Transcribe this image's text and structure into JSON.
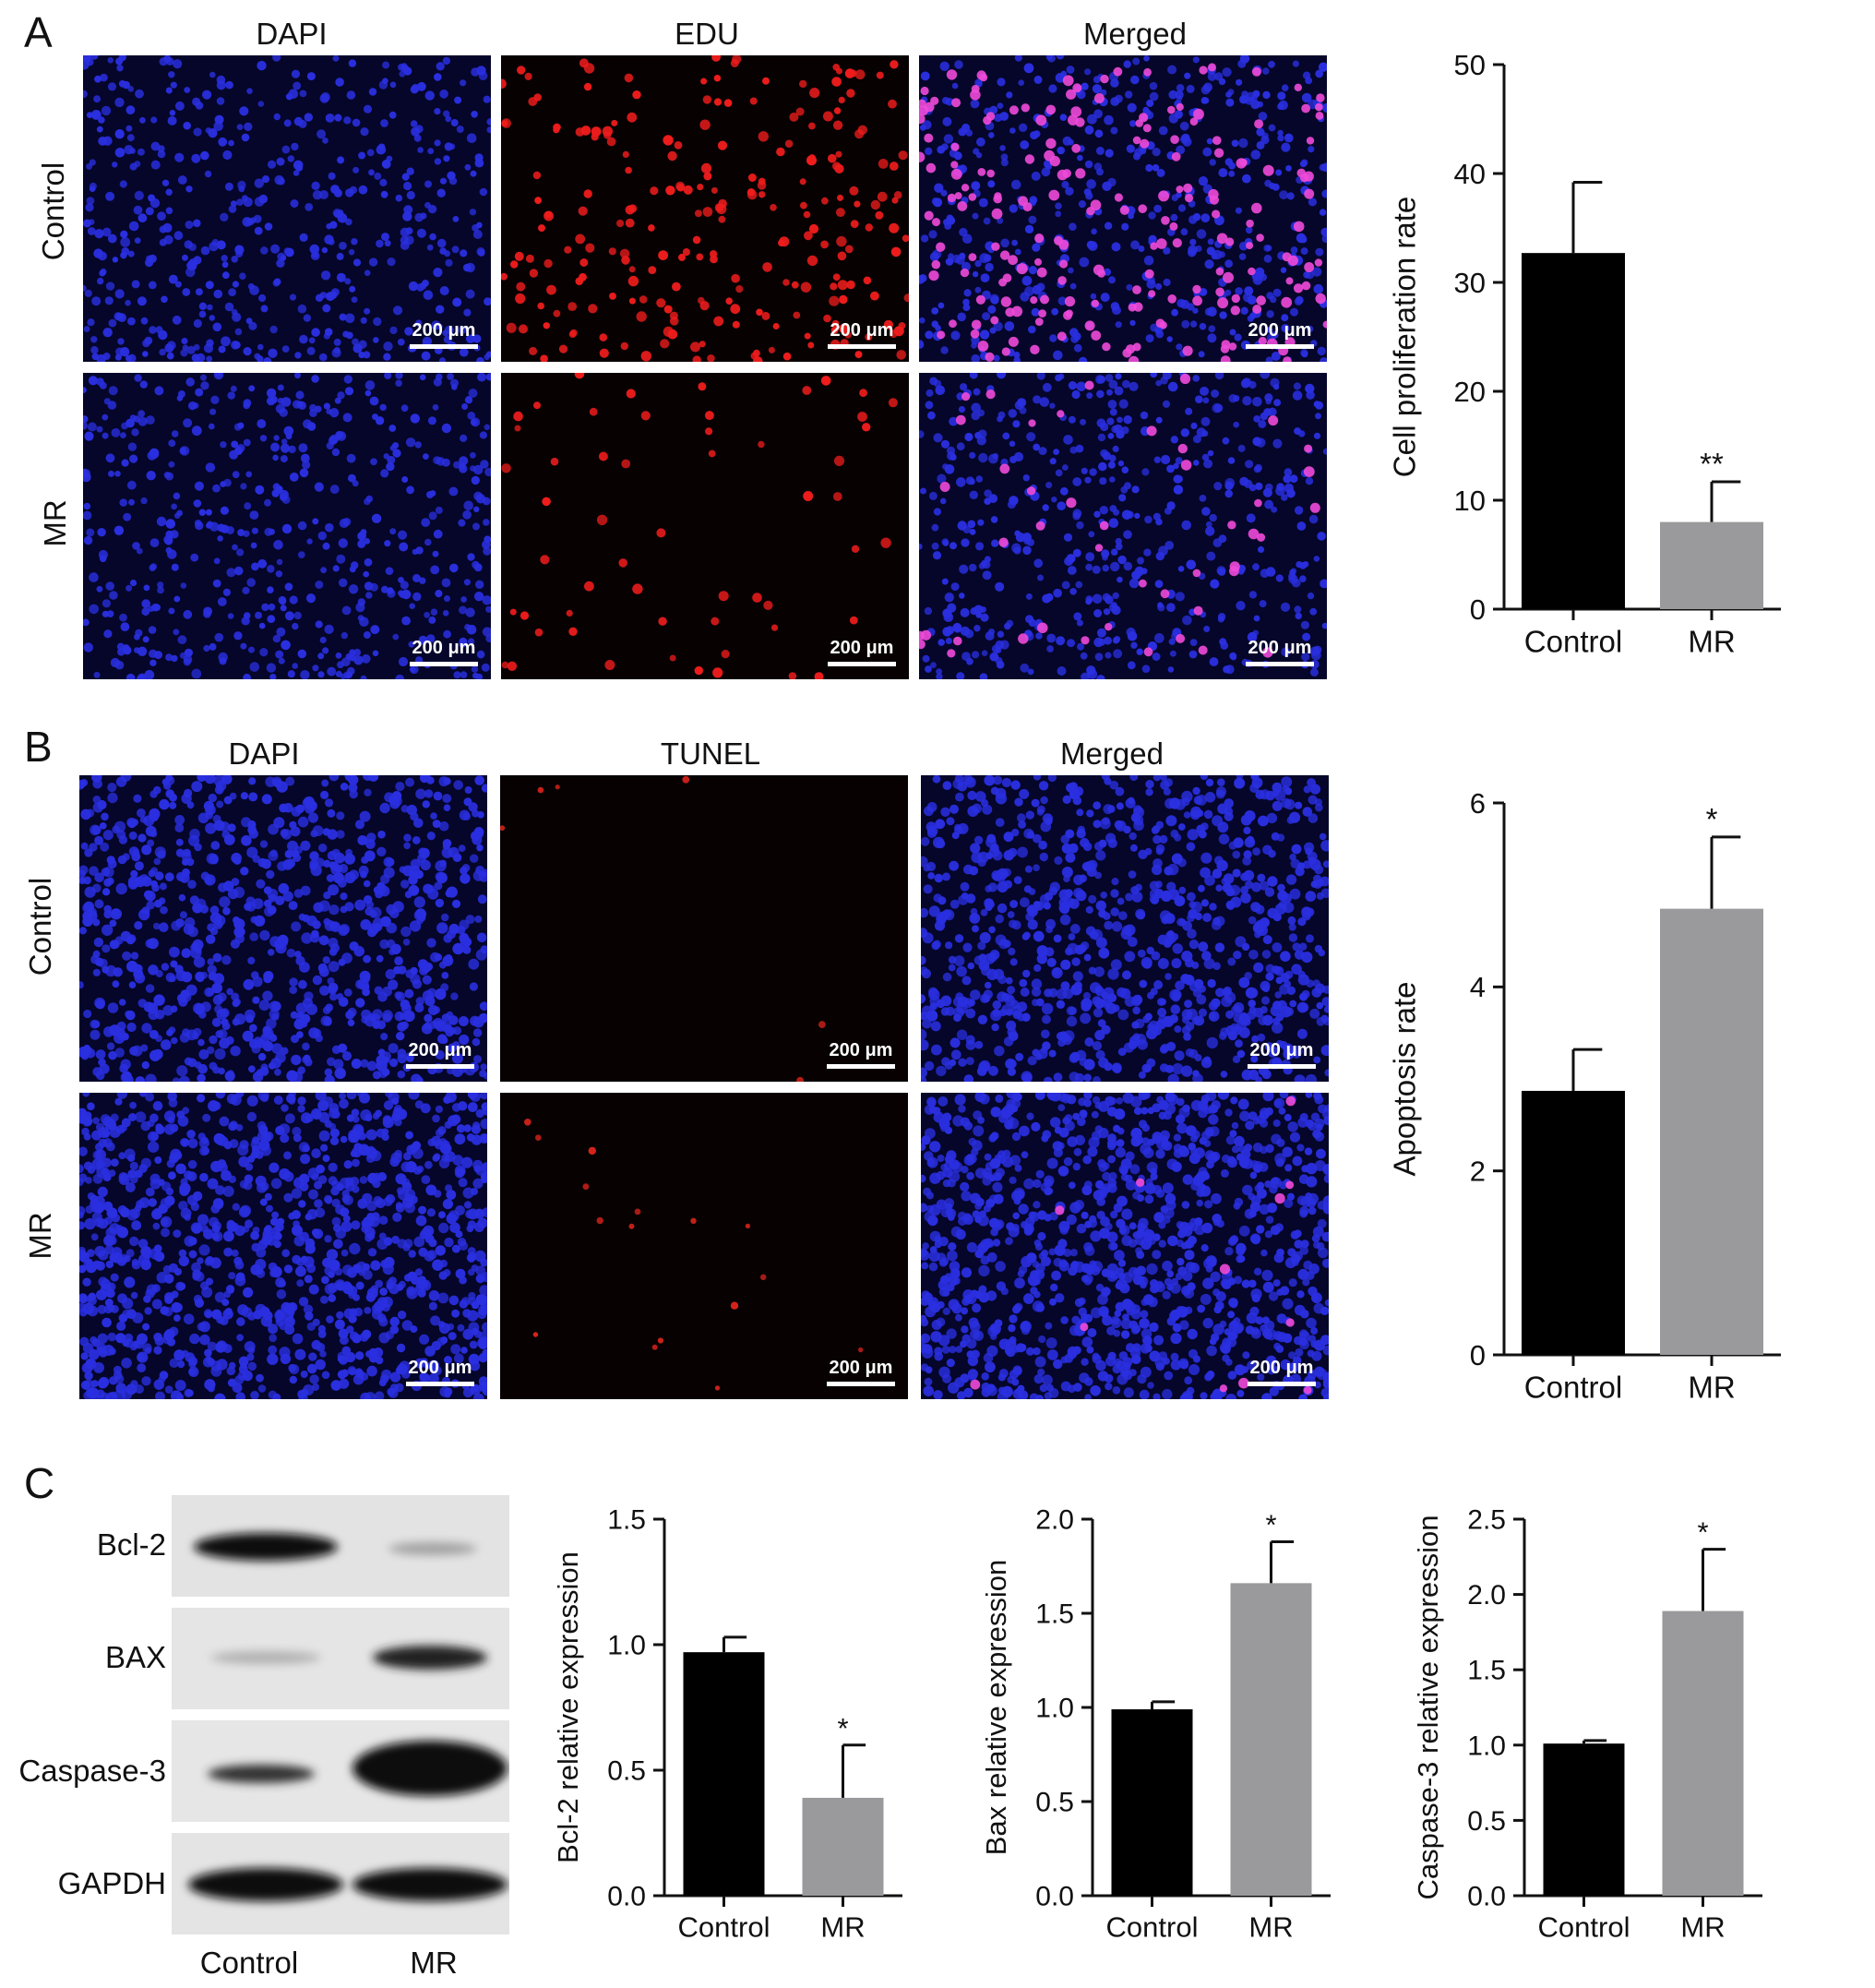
{
  "panel_letters": [
    "A",
    "B",
    "C"
  ],
  "panel_a": {
    "columns": [
      "DAPI",
      "EDU",
      "Merged"
    ],
    "rows": [
      "Control",
      "MR"
    ],
    "scale_bar": "200 μm"
  },
  "panel_b": {
    "columns": [
      "DAPI",
      "TUNEL",
      "Merged"
    ],
    "rows": [
      "Control",
      "MR"
    ],
    "scale_bar": "200 μm"
  },
  "panel_c": {
    "blot_rows": [
      "Bcl-2",
      "BAX",
      "Caspase-3",
      "GAPDH"
    ],
    "blot_lanes": [
      "Control",
      "MR"
    ]
  },
  "colors": {
    "control_bar": "#000000",
    "mr_bar": "#9a9a9d",
    "dapi": "#1f25d9",
    "edu": "#e0161b",
    "merged": "#e83ad8"
  },
  "chart_data": [
    {
      "id": "A",
      "type": "bar",
      "categories": [
        "Control",
        "MR"
      ],
      "values": [
        32.7,
        8.0
      ],
      "errors": [
        6.5,
        3.7
      ],
      "significance": [
        "",
        "**"
      ],
      "ylabel": "Cell proliferation rate",
      "ylim": [
        0,
        50
      ],
      "yticks": [
        0,
        10,
        20,
        30,
        40,
        50
      ],
      "ytick_labels": [
        "0",
        "10",
        "20",
        "30",
        "40",
        "50"
      ]
    },
    {
      "id": "B",
      "type": "bar",
      "categories": [
        "Control",
        "MR"
      ],
      "values": [
        2.87,
        4.85
      ],
      "errors": [
        0.45,
        0.78
      ],
      "significance": [
        "",
        "*"
      ],
      "ylabel": "Apoptosis rate",
      "ylim": [
        0,
        6
      ],
      "yticks": [
        0,
        2,
        4,
        6
      ],
      "ytick_labels": [
        "0",
        "2",
        "4",
        "6"
      ]
    },
    {
      "id": "C1",
      "type": "bar",
      "categories": [
        "Control",
        "MR"
      ],
      "values": [
        0.97,
        0.39
      ],
      "errors": [
        0.06,
        0.21
      ],
      "significance": [
        "",
        "*"
      ],
      "ylabel": "Bcl-2 relative expression",
      "ylim": [
        0,
        1.5
      ],
      "yticks": [
        0,
        0.5,
        1.0,
        1.5
      ],
      "ytick_labels": [
        "0.0",
        "0.5",
        "1.0",
        "1.5"
      ]
    },
    {
      "id": "C2",
      "type": "bar",
      "categories": [
        "Control",
        "MR"
      ],
      "values": [
        0.99,
        1.66
      ],
      "errors": [
        0.04,
        0.22
      ],
      "significance": [
        "",
        "*"
      ],
      "ylabel": "Bax relative expression",
      "ylim": [
        0,
        2.0
      ],
      "yticks": [
        0,
        0.5,
        1.0,
        1.5,
        2.0
      ],
      "ytick_labels": [
        "0.0",
        "0.5",
        "1.0",
        "1.5",
        "2.0"
      ]
    },
    {
      "id": "C3",
      "type": "bar",
      "categories": [
        "Control",
        "MR"
      ],
      "values": [
        1.01,
        1.89
      ],
      "errors": [
        0.02,
        0.41
      ],
      "significance": [
        "",
        "*"
      ],
      "ylabel": "Caspase-3 relative expression",
      "ylim": [
        0,
        2.5
      ],
      "yticks": [
        0,
        0.5,
        1.0,
        1.5,
        2.0,
        2.5
      ],
      "ytick_labels": [
        "0.0",
        "0.5",
        "1.0",
        "1.5",
        "2.0",
        "2.5"
      ]
    }
  ]
}
